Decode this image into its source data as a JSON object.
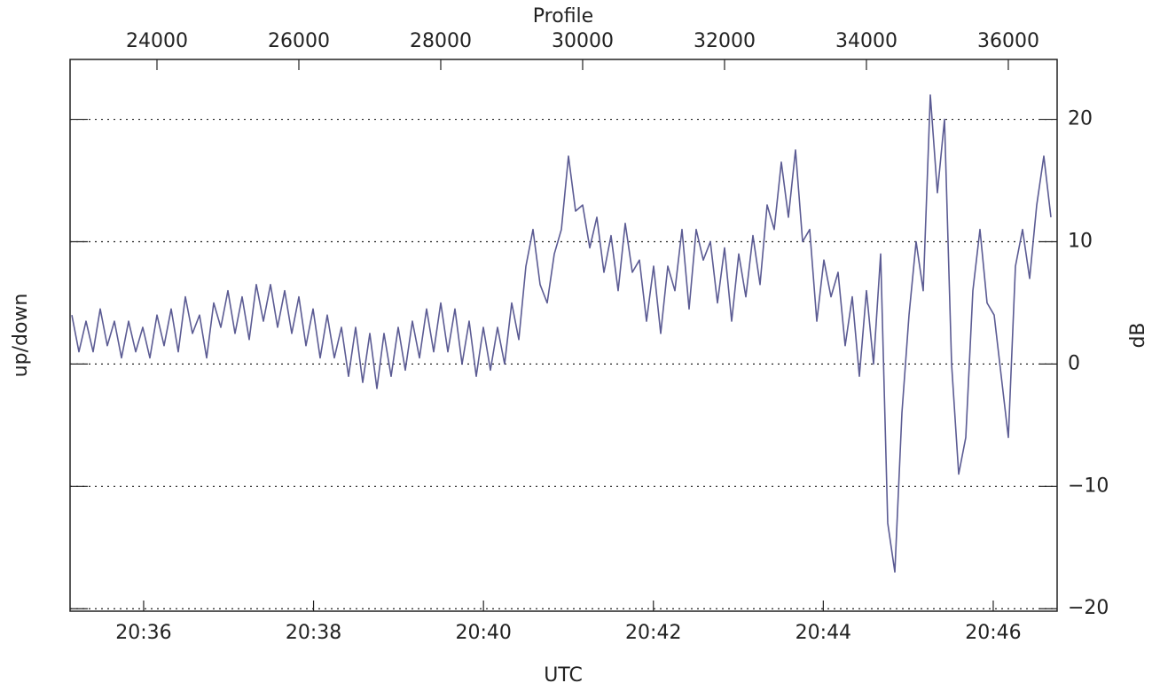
{
  "chart_data": {
    "type": "line",
    "xlabel": "Profile",
    "x2label": "UTC",
    "ylabel": "up/down",
    "y2label": "dB",
    "xlim": [
      22775,
      36688
    ],
    "xticks": [
      24000,
      26000,
      28000,
      30000,
      32000,
      34000,
      36000
    ],
    "x2lim": [
      1235.134,
      1246.752
    ],
    "x2ticks": [
      {
        "value": 1236,
        "label": "20:36"
      },
      {
        "value": 1238,
        "label": "20:38"
      },
      {
        "value": 1240,
        "label": "20:40"
      },
      {
        "value": 1242,
        "label": "20:42"
      },
      {
        "value": 1244,
        "label": "20:44"
      },
      {
        "value": 1246,
        "label": "20:46"
      }
    ],
    "ylim": [
      -20.2,
      24.9
    ],
    "yticks": [
      {
        "value": -20,
        "label": "−20"
      },
      {
        "value": -10,
        "label": "−10"
      },
      0,
      10,
      20
    ],
    "grid": true,
    "x": [
      22800,
      22900,
      23000,
      23100,
      23200,
      23300,
      23400,
      23500,
      23600,
      23700,
      23800,
      23900,
      24000,
      24100,
      24200,
      24300,
      24400,
      24500,
      24600,
      24700,
      24800,
      24900,
      25000,
      25100,
      25200,
      25300,
      25400,
      25500,
      25600,
      25700,
      25800,
      25900,
      26000,
      26100,
      26200,
      26300,
      26400,
      26500,
      26600,
      26700,
      26800,
      26900,
      27000,
      27100,
      27200,
      27300,
      27400,
      27500,
      27600,
      27700,
      27800,
      27900,
      28000,
      28100,
      28200,
      28300,
      28400,
      28500,
      28600,
      28700,
      28800,
      28900,
      29000,
      29100,
      29200,
      29300,
      29400,
      29500,
      29600,
      29700,
      29800,
      29900,
      30000,
      30100,
      30200,
      30300,
      30400,
      30500,
      30600,
      30700,
      30800,
      30900,
      31000,
      31100,
      31200,
      31300,
      31400,
      31500,
      31600,
      31700,
      31800,
      31900,
      32000,
      32100,
      32200,
      32300,
      32400,
      32500,
      32600,
      32700,
      32800,
      32900,
      33000,
      33100,
      33200,
      33300,
      33400,
      33500,
      33600,
      33700,
      33800,
      33900,
      34000,
      34100,
      34200,
      34300,
      34400,
      34500,
      34600,
      34700,
      34800,
      34900,
      35000,
      35100,
      35200,
      35300,
      35400,
      35500,
      35600,
      35700,
      35800,
      35900,
      36000,
      36100,
      36200,
      36300,
      36400,
      36500,
      36600
    ],
    "series": [
      {
        "color": "#5b5b93",
        "values": [
          4,
          1,
          3.5,
          1,
          4.5,
          1.5,
          3.5,
          0.5,
          3.5,
          1,
          3,
          0.5,
          4,
          1.5,
          4.5,
          1,
          5.5,
          2.5,
          4,
          0.5,
          5,
          3,
          6,
          2.5,
          5.5,
          2,
          6.5,
          3.5,
          6.5,
          3,
          6,
          2.5,
          5.5,
          1.5,
          4.5,
          0.5,
          4,
          0.5,
          3,
          -1,
          3,
          -1.5,
          2.5,
          -2,
          2.5,
          -1,
          3,
          -0.5,
          3.5,
          0.5,
          4.5,
          1,
          5,
          1,
          4.5,
          0,
          3.5,
          -1,
          3,
          -0.5,
          3,
          0,
          5,
          2,
          8,
          11,
          6.5,
          5,
          9,
          11,
          17,
          12.5,
          13,
          9.5,
          12,
          7.5,
          10.5,
          6,
          11.5,
          7.5,
          8.5,
          3.5,
          8,
          2.5,
          8,
          6,
          11,
          4.5,
          11,
          8.5,
          10,
          5,
          9.5,
          3.5,
          9,
          5.5,
          10.5,
          6.5,
          13,
          11,
          16.5,
          12,
          17.5,
          10,
          11,
          3.5,
          8.5,
          5.5,
          7.5,
          1.5,
          5.5,
          -1,
          6,
          0,
          9,
          -13,
          -17,
          -4,
          4,
          10,
          6,
          22,
          14,
          20,
          0,
          -9,
          -6,
          6,
          11,
          5,
          4,
          -1,
          -6,
          8,
          11,
          7,
          13,
          17,
          12
        ]
      }
    ]
  }
}
